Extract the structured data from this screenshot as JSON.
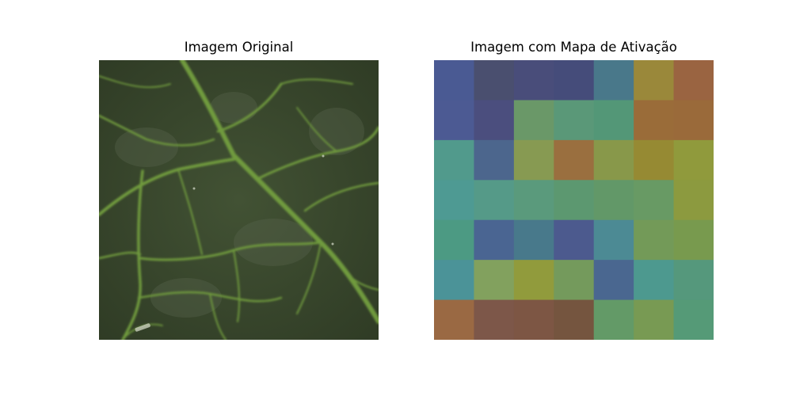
{
  "figure": {
    "left_title": "Imagem Original",
    "right_title": "Imagem com Mapa de Ativação"
  },
  "original_image": {
    "subject": "close-up of a green leaf surface with branching veins",
    "colors": {
      "base": "#3a4a2c",
      "shadow": "#262f1f",
      "vein": "#6e9a3c",
      "highlight": "#6a7a5a"
    }
  },
  "activation_map": {
    "rows": 7,
    "cols": 7,
    "colors": [
      [
        "#4a5a93",
        "#4a4f6f",
        "#494d7a",
        "#454c7a",
        "#49788a",
        "#9a883a",
        "#9a6441"
      ],
      [
        "#4c5a93",
        "#4b4e7e",
        "#6a9868",
        "#5a9878",
        "#539777",
        "#9a6c39",
        "#9a6a3a"
      ],
      [
        "#519a8c",
        "#4c668d",
        "#879a52",
        "#9a6f3f",
        "#88984a",
        "#968a33",
        "#909a3c"
      ],
      [
        "#4e9a93",
        "#559a88",
        "#5a9a7c",
        "#5c9870",
        "#629868",
        "#689a64",
        "#8c9a3f"
      ],
      [
        "#4c9a83",
        "#4a6592",
        "#48798b",
        "#4c5a8e",
        "#4c8a94",
        "#739a58",
        "#789a4e"
      ],
      [
        "#4b9398",
        "#82a15e",
        "#919b3c",
        "#749a5c",
        "#4a6790",
        "#4d998f",
        "#55987c"
      ],
      [
        "#9a6943",
        "#7d5749",
        "#7d5644",
        "#75553f",
        "#639a67",
        "#789a53",
        "#559a77"
      ]
    ]
  }
}
